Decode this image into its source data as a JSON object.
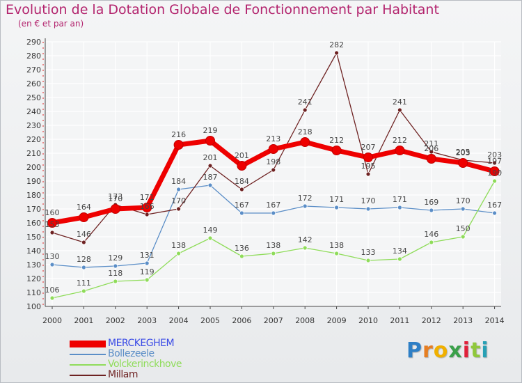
{
  "chart_data": {
    "type": "line",
    "title": "Evolution de la Dotation Globale de Fonctionnement par Habitant",
    "subtitle": "(en € et par an)",
    "xlabel": "",
    "ylabel": "",
    "ylim": [
      100,
      290
    ],
    "ytick_step": 10,
    "grid": true,
    "categories": [
      "2000",
      "2001",
      "2002",
      "2003",
      "2004",
      "2005",
      "2006",
      "2007",
      "2008",
      "2009",
      "2010",
      "2011",
      "2012",
      "2013",
      "2014"
    ],
    "series": [
      {
        "name": "MERCKEGHEM",
        "color": "#ee0000",
        "values": [
          160,
          164,
          170,
          171,
          216,
          219,
          201,
          213,
          218,
          212,
          207,
          212,
          206,
          203,
          197
        ]
      },
      {
        "name": "Bollezeele",
        "color": "#5b8ec7",
        "values": [
          130,
          128,
          129,
          131,
          184,
          187,
          167,
          167,
          172,
          171,
          170,
          171,
          169,
          170,
          167
        ]
      },
      {
        "name": "Volckerinckhove",
        "color": "#8fdc5a",
        "values": [
          106,
          111,
          118,
          119,
          138,
          149,
          136,
          138,
          142,
          138,
          133,
          134,
          146,
          150,
          190
        ]
      },
      {
        "name": "Millam",
        "color": "#6e2222",
        "values": [
          153,
          146,
          173,
          166,
          170,
          201,
          184,
          198,
          241,
          282,
          195,
          241,
          211,
          205,
          203
        ]
      }
    ]
  },
  "logo": {
    "letters": [
      {
        "char": "P",
        "color": "#2e7fc6"
      },
      {
        "char": "r",
        "color": "#e67e22"
      },
      {
        "char": "o",
        "color": "#f0b000"
      },
      {
        "char": "x",
        "color": "#3aa04a"
      },
      {
        "char": "i",
        "color": "#e0203a"
      },
      {
        "char": "t",
        "color": "#8fc83c"
      },
      {
        "char": "i",
        "color": "#27a0b5"
      }
    ]
  }
}
